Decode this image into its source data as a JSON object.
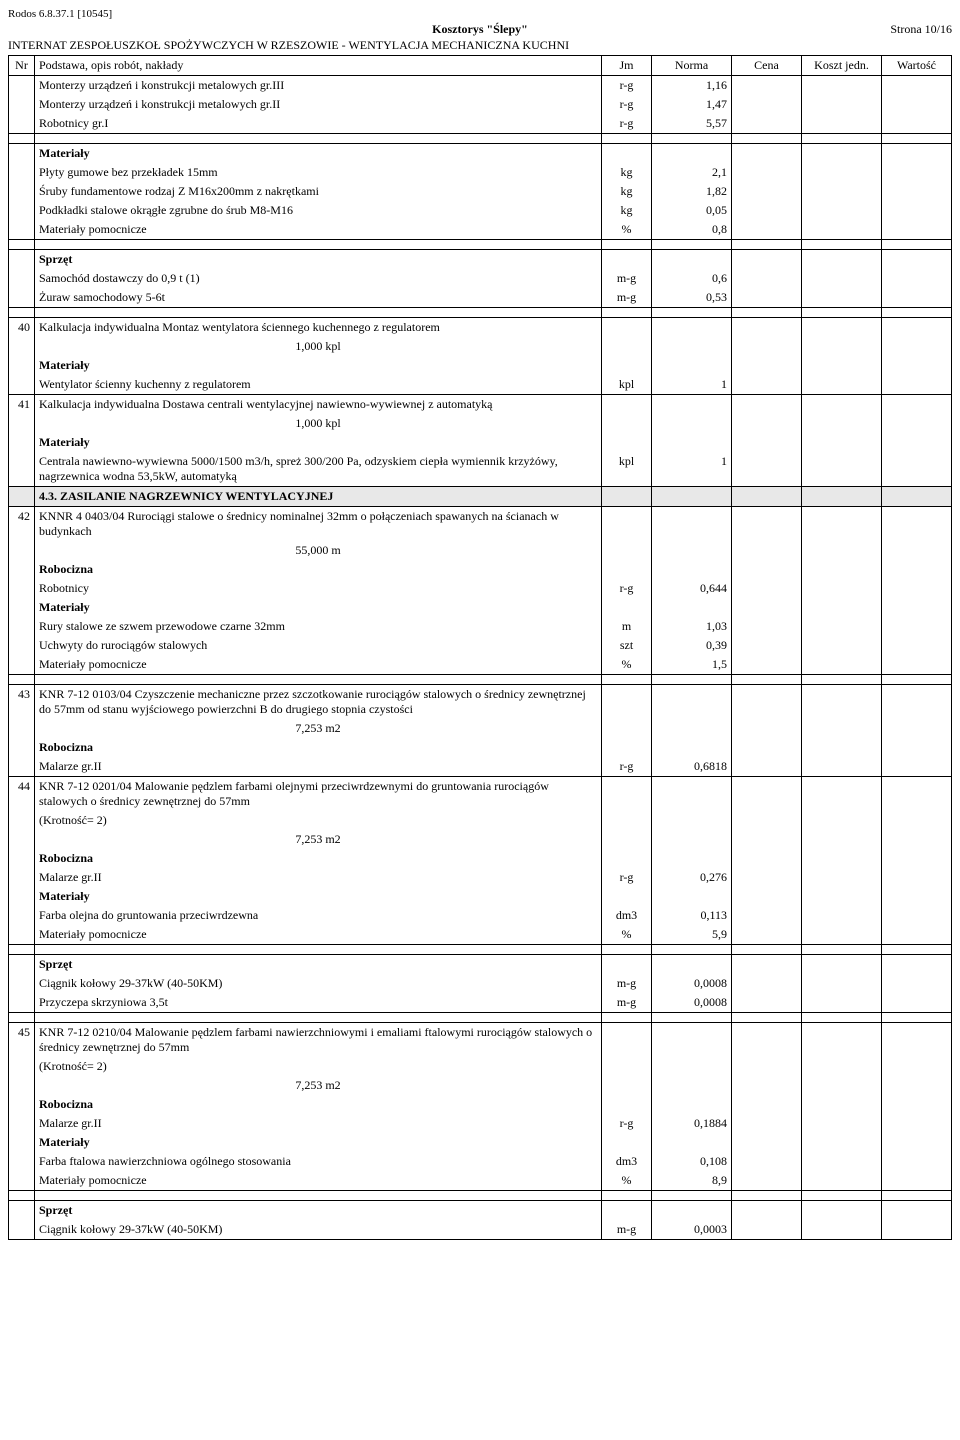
{
  "header_ref": "Rodos 6.8.37.1 [10545]",
  "title": "Kosztorys \"Ślepy\"",
  "page": "Strona 10/16",
  "subtitle": "INTERNAT ZESPOŁUSZKOŁ SPOŻYWCZYCH W RZESZOWIE - WENTYLACJA MECHANICZNA KUCHNI",
  "cols": {
    "nr": "Nr",
    "desc": "Podstawa, opis robót, nakłady",
    "jm": "Jm",
    "norma": "Norma",
    "cena": "Cena",
    "koszt": "Koszt jedn.",
    "wartosc": "Wartość"
  },
  "rows": [
    {
      "nr": "",
      "desc": "Monterzy urządzeń i konstrukcji metalowych gr.III",
      "jm": "r-g",
      "norma": "1,16",
      "cls": "noborder-bottom"
    },
    {
      "nr": "",
      "desc": "Monterzy urządzeń i konstrukcji metalowych gr.II",
      "jm": "r-g",
      "norma": "1,47",
      "cls": "noborder-tb"
    },
    {
      "nr": "",
      "desc": "Robotnicy gr.I",
      "jm": "r-g",
      "norma": "5,57",
      "cls": "noborder-top"
    },
    {
      "spacer": true
    },
    {
      "nr": "",
      "desc": "Materiały",
      "b": true,
      "cls": "noborder-bottom"
    },
    {
      "nr": "",
      "desc": "Płyty gumowe bez przekładek 15mm",
      "jm": "kg",
      "norma": "2,1",
      "cls": "noborder-tb"
    },
    {
      "nr": "",
      "desc": "Śruby fundamentowe rodzaj Z M16x200mm z nakrętkami",
      "jm": "kg",
      "norma": "1,82",
      "cls": "noborder-tb"
    },
    {
      "nr": "",
      "desc": "Podkładki stalowe okrągłe zgrubne do śrub  M8-M16",
      "jm": "kg",
      "norma": "0,05",
      "cls": "noborder-tb"
    },
    {
      "nr": "",
      "desc": "Materiały pomocnicze",
      "jm": "%",
      "norma": "0,8",
      "cls": "noborder-top"
    },
    {
      "spacer": true
    },
    {
      "nr": "",
      "desc": "Sprzęt",
      "b": true,
      "cls": "noborder-bottom"
    },
    {
      "nr": "",
      "desc": "Samochód dostawczy do 0,9 t (1)",
      "jm": "m-g",
      "norma": "0,6",
      "cls": "noborder-tb"
    },
    {
      "nr": "",
      "desc": "Żuraw samochodowy  5-6t",
      "jm": "m-g",
      "norma": "0,53",
      "cls": "noborder-top"
    },
    {
      "spacer": true
    },
    {
      "nr": "40",
      "desc": "Kalkulacja indywidualna  Montaz wentylatora ściennego kuchennego z regulatorem",
      "cls": "noborder-bottom"
    },
    {
      "nr": "",
      "desc": "1,000  kpl",
      "center": true,
      "cls": "noborder-tb"
    },
    {
      "nr": "",
      "desc": "Materiały",
      "b": true,
      "cls": "noborder-tb"
    },
    {
      "nr": "",
      "desc": "Wentylator ścienny kuchenny z regulatorem",
      "jm": "kpl",
      "norma": "1",
      "cls": "noborder-top"
    },
    {
      "nr": "41",
      "desc": "Kalkulacja indywidualna  Dostawa centrali wentylacyjnej nawiewno-wywiewnej z automatyką",
      "cls": "noborder-bottom"
    },
    {
      "nr": "",
      "desc": "1,000  kpl",
      "center": true,
      "cls": "noborder-tb"
    },
    {
      "nr": "",
      "desc": "Materiały",
      "b": true,
      "cls": "noborder-tb"
    },
    {
      "nr": "",
      "desc": "Centrala nawiewno-wywiewna 5000/1500 m3/h,  spreż 300/200 Pa, odzyskiem ciepła wymiennik krzyżówy, nagrzewnica wodna 53,5kW, automatyką",
      "jm": "kpl",
      "norma": "1",
      "cls": "noborder-top"
    },
    {
      "section": true,
      "desc": "4.3. ZASILANIE NAGRZEWNICY WENTYLACYJNEJ"
    },
    {
      "nr": "42",
      "desc": "KNNR 4 0403/04  Rurociągi stalowe o średnicy nominalnej 32mm o połączeniach spawanych na ścianach w budynkach",
      "cls": "noborder-bottom"
    },
    {
      "nr": "",
      "desc": "55,000  m",
      "center": true,
      "cls": "noborder-tb"
    },
    {
      "nr": "",
      "desc": "Robocizna",
      "b": true,
      "cls": "noborder-tb"
    },
    {
      "nr": "",
      "desc": "Robotnicy",
      "jm": "r-g",
      "norma": "0,644",
      "cls": "noborder-tb"
    },
    {
      "nr": "",
      "desc": "Materiały",
      "b": true,
      "cls": "noborder-tb"
    },
    {
      "nr": "",
      "desc": "Rury stalowe ze szwem przewodowe czarne  32mm",
      "jm": "m",
      "norma": "1,03",
      "cls": "noborder-tb"
    },
    {
      "nr": "",
      "desc": "Uchwyty do rurociągów stalowych",
      "jm": "szt",
      "norma": "0,39",
      "cls": "noborder-tb"
    },
    {
      "nr": "",
      "desc": "Materiały pomocnicze",
      "jm": "%",
      "norma": "1,5",
      "cls": "noborder-top"
    },
    {
      "spacer": true
    },
    {
      "nr": "43",
      "desc": "KNR 7-12 0103/04  Czyszczenie mechaniczne przez szczotkowanie rurociągów stalowych o średnicy zewnętrznej do 57mm od stanu wyjściowego powierzchni B do drugiego stopnia czystości",
      "cls": "noborder-bottom"
    },
    {
      "nr": "",
      "desc": "7,253  m2",
      "center": true,
      "cls": "noborder-tb"
    },
    {
      "nr": "",
      "desc": "Robocizna",
      "b": true,
      "cls": "noborder-tb"
    },
    {
      "nr": "",
      "desc": "Malarze gr.II",
      "jm": "r-g",
      "norma": "0,6818",
      "cls": "noborder-top"
    },
    {
      "nr": "44",
      "desc": "KNR 7-12 0201/04  Malowanie pędzlem farbami olejnymi przeciwrdzewnymi do gruntowania rurociągów stalowych o średnicy zewnętrznej do 57mm",
      "cls": "noborder-bottom"
    },
    {
      "nr": "",
      "desc": " (Krotność= 2)",
      "cls": "noborder-tb"
    },
    {
      "nr": "",
      "desc": "7,253  m2",
      "center": true,
      "cls": "noborder-tb"
    },
    {
      "nr": "",
      "desc": "Robocizna",
      "b": true,
      "cls": "noborder-tb"
    },
    {
      "nr": "",
      "desc": "Malarze gr.II",
      "jm": "r-g",
      "norma": "0,276",
      "cls": "noborder-tb"
    },
    {
      "nr": "",
      "desc": "Materiały",
      "b": true,
      "cls": "noborder-tb"
    },
    {
      "nr": "",
      "desc": "Farba olejna do gruntowania przeciwrdzewna",
      "jm": "dm3",
      "norma": "0,113",
      "cls": "noborder-tb"
    },
    {
      "nr": "",
      "desc": "Materiały pomocnicze",
      "jm": "%",
      "norma": "5,9",
      "cls": "noborder-top"
    },
    {
      "spacer": true
    },
    {
      "nr": "",
      "desc": "Sprzęt",
      "b": true,
      "cls": "noborder-bottom"
    },
    {
      "nr": "",
      "desc": "Ciągnik kołowy  29-37kW (40-50KM)",
      "jm": "m-g",
      "norma": "0,0008",
      "cls": "noborder-tb"
    },
    {
      "nr": "",
      "desc": "Przyczepa skrzyniowa  3,5t",
      "jm": "m-g",
      "norma": "0,0008",
      "cls": "noborder-top"
    },
    {
      "spacer": true
    },
    {
      "nr": "45",
      "desc": "KNR 7-12 0210/04  Malowanie pędzlem farbami nawierzchniowymi i emaliami ftalowymi rurociągów stalowych o średnicy zewnętrznej do 57mm",
      "cls": "noborder-bottom"
    },
    {
      "nr": "",
      "desc": " (Krotność= 2)",
      "cls": "noborder-tb"
    },
    {
      "nr": "",
      "desc": "7,253  m2",
      "center": true,
      "cls": "noborder-tb"
    },
    {
      "nr": "",
      "desc": "Robocizna",
      "b": true,
      "cls": "noborder-tb"
    },
    {
      "nr": "",
      "desc": "Malarze gr.II",
      "jm": "r-g",
      "norma": "0,1884",
      "cls": "noborder-tb"
    },
    {
      "nr": "",
      "desc": "Materiały",
      "b": true,
      "cls": "noborder-tb"
    },
    {
      "nr": "",
      "desc": "Farba ftalowa nawierzchniowa ogólnego stosowania",
      "jm": "dm3",
      "norma": "0,108",
      "cls": "noborder-tb"
    },
    {
      "nr": "",
      "desc": "Materiały pomocnicze",
      "jm": "%",
      "norma": "8,9",
      "cls": "noborder-top"
    },
    {
      "spacer": true
    },
    {
      "nr": "",
      "desc": "Sprzęt",
      "b": true,
      "cls": "noborder-bottom"
    },
    {
      "nr": "",
      "desc": "Ciągnik kołowy  29-37kW (40-50KM)",
      "jm": "m-g",
      "norma": "0,0003",
      "cls": "noborder-top"
    }
  ]
}
